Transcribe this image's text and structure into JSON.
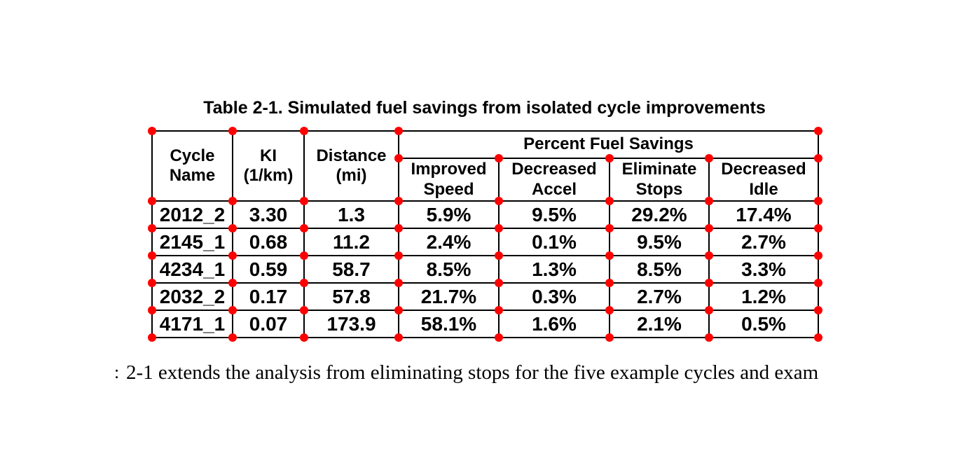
{
  "title": "Table 2-1. Simulated fuel savings from isolated cycle improvements",
  "table": {
    "header": {
      "cycle": [
        "Cycle",
        "Name"
      ],
      "ki": [
        "KI",
        "(1/km)"
      ],
      "distance": [
        "Distance",
        "(mi)"
      ],
      "group": "Percent Fuel Savings",
      "improved_speed": [
        "Improved",
        "Speed"
      ],
      "decreased_accel": [
        "Decreased",
        "Accel"
      ],
      "eliminate_stops": [
        "Eliminate",
        "Stops"
      ],
      "decreased_idle": [
        "Decreased",
        "Idle"
      ]
    },
    "rows": [
      {
        "cycle": "2012_2",
        "ki": "3.30",
        "distance": "1.3",
        "improved_speed": "5.9%",
        "decreased_accel": "9.5%",
        "eliminate_stops": "29.2%",
        "decreased_idle": "17.4%"
      },
      {
        "cycle": "2145_1",
        "ki": "0.68",
        "distance": "11.2",
        "improved_speed": "2.4%",
        "decreased_accel": "0.1%",
        "eliminate_stops": "9.5%",
        "decreased_idle": "2.7%"
      },
      {
        "cycle": "4234_1",
        "ki": "0.59",
        "distance": "58.7",
        "improved_speed": "8.5%",
        "decreased_accel": "1.3%",
        "eliminate_stops": "8.5%",
        "decreased_idle": "3.3%"
      },
      {
        "cycle": "2032_2",
        "ki": "0.17",
        "distance": "57.8",
        "improved_speed": "21.7%",
        "decreased_accel": "0.3%",
        "eliminate_stops": "2.7%",
        "decreased_idle": "1.2%"
      },
      {
        "cycle": "4171_1",
        "ki": "0.07",
        "distance": "173.9",
        "improved_speed": "58.1%",
        "decreased_accel": "1.6%",
        "eliminate_stops": "2.1%",
        "decreased_idle": "0.5%"
      }
    ]
  },
  "body_text": {
    "fragment": ":",
    "line": "2-1 extends the analysis from eliminating stops for the five example cycles and exam"
  },
  "overlay": {
    "dot_color": "#ff0000"
  }
}
